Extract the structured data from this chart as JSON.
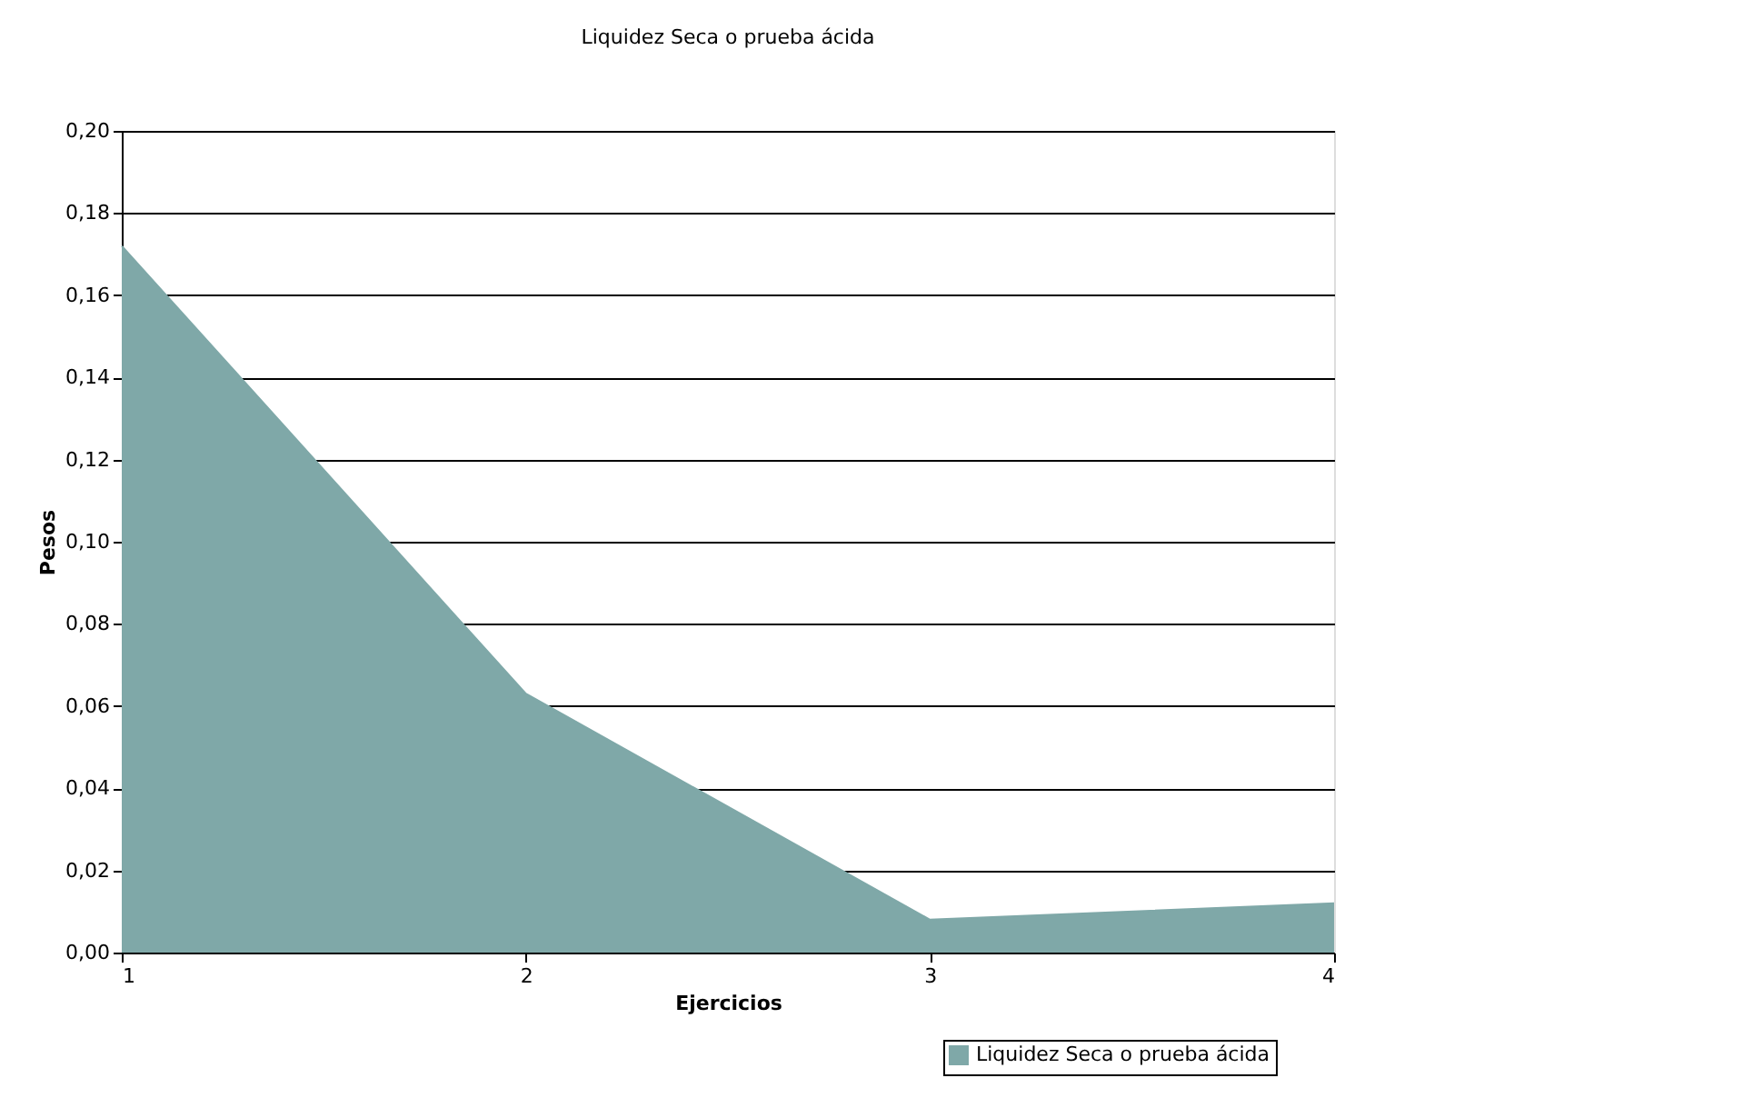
{
  "chart_data": {
    "type": "area",
    "title": "Liquidez Seca o prueba ácida",
    "xlabel": "Ejercicios",
    "ylabel": "Pesos",
    "x": [
      1,
      2,
      3,
      4
    ],
    "series": [
      {
        "name": "Liquidez Seca o prueba ácida",
        "color": "#7fa8a8",
        "values": [
          0.172,
          0.063,
          0.008,
          0.012
        ]
      }
    ],
    "xlim": [
      1,
      4
    ],
    "xticks": [
      1,
      2,
      3,
      4
    ],
    "ylim": [
      0,
      0.2
    ],
    "yticks": [
      {
        "value": 0,
        "label": "0,00"
      },
      {
        "value": 0.02,
        "label": "0,02"
      },
      {
        "value": 0.04,
        "label": "0,04"
      },
      {
        "value": 0.06,
        "label": "0,06"
      },
      {
        "value": 0.08,
        "label": "0,08"
      },
      {
        "value": 0.1,
        "label": "0,10"
      },
      {
        "value": 0.12,
        "label": "0,12"
      },
      {
        "value": 0.14,
        "label": "0,14"
      },
      {
        "value": 0.16,
        "label": "0,16"
      },
      {
        "value": 0.18,
        "label": "0,18"
      },
      {
        "value": 0.2,
        "label": "0,20"
      }
    ],
    "grid": "y",
    "legend": "bottom right"
  }
}
